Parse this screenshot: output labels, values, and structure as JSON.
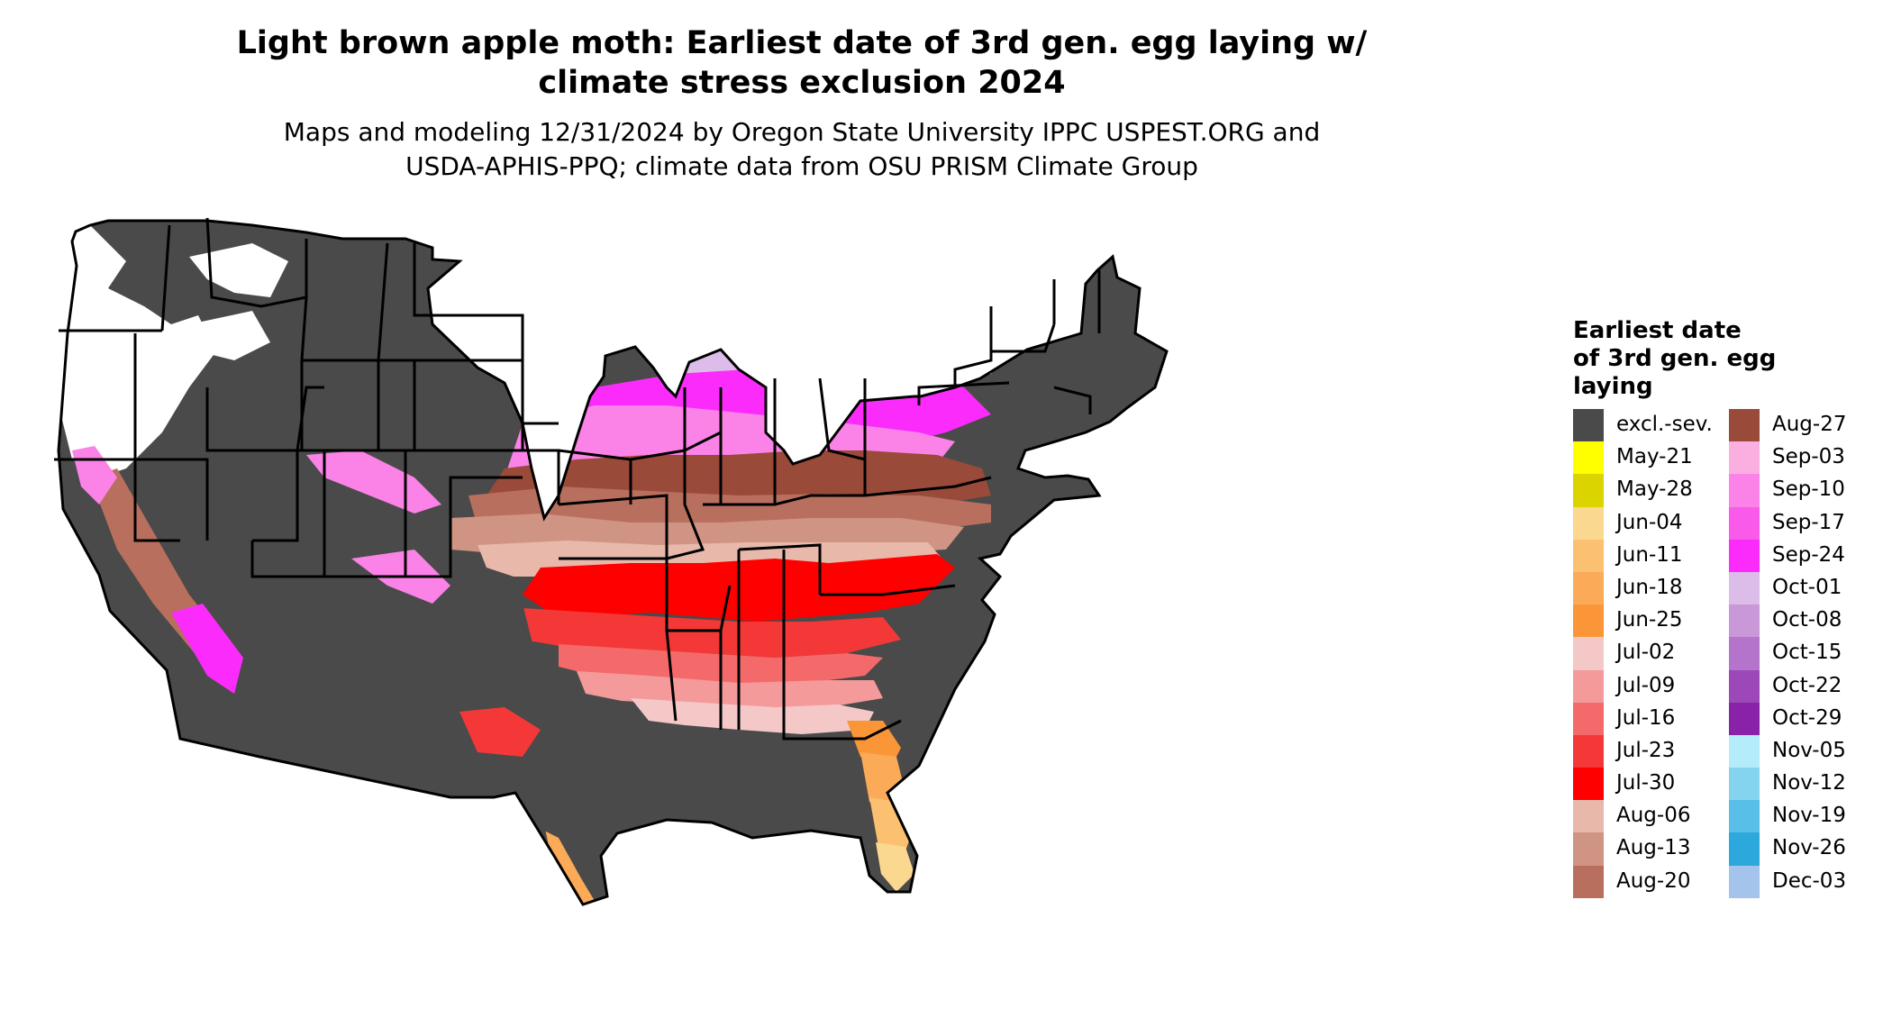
{
  "title_line1": "Light brown apple moth: Earliest date of 3rd gen. egg laying w/",
  "title_line2": "climate stress exclusion 2024",
  "subtitle_line1": "Maps and modeling 12/31/2024 by Oregon State University IPPC USPEST.ORG and",
  "subtitle_line2": "USDA-APHIS-PPQ; climate data from OSU PRISM Climate Group",
  "legend": {
    "title_line1": "Earliest date",
    "title_line2": "of 3rd gen. egg",
    "title_line3": "laying",
    "column1": [
      {
        "label": "excl.-sev.",
        "color": "#4a4a4a"
      },
      {
        "label": "May-21",
        "color": "#ffff00"
      },
      {
        "label": "May-28",
        "color": "#dcd400"
      },
      {
        "label": "Jun-04",
        "color": "#fbd890"
      },
      {
        "label": "Jun-11",
        "color": "#fbc070"
      },
      {
        "label": "Jun-18",
        "color": "#fbaa58"
      },
      {
        "label": "Jun-25",
        "color": "#fa9638"
      },
      {
        "label": "Jul-02",
        "color": "#f5c8c8"
      },
      {
        "label": "Jul-09",
        "color": "#f49a9a"
      },
      {
        "label": "Jul-16",
        "color": "#f46a6a"
      },
      {
        "label": "Jul-23",
        "color": "#f43838"
      },
      {
        "label": "Jul-30",
        "color": "#ff0000"
      },
      {
        "label": "Aug-06",
        "color": "#e8b8aa"
      },
      {
        "label": "Aug-13",
        "color": "#cf9484"
      },
      {
        "label": "Aug-20",
        "color": "#b86f5e"
      }
    ],
    "column2": [
      {
        "label": "Aug-27",
        "color": "#9a4a38"
      },
      {
        "label": "Sep-03",
        "color": "#fbaee0"
      },
      {
        "label": "Sep-10",
        "color": "#fb82e6"
      },
      {
        "label": "Sep-17",
        "color": "#fa5aea"
      },
      {
        "label": "Sep-24",
        "color": "#fb2cfb"
      },
      {
        "label": "Oct-01",
        "color": "#dcbce8"
      },
      {
        "label": "Oct-08",
        "color": "#c898d8"
      },
      {
        "label": "Oct-15",
        "color": "#b474cc"
      },
      {
        "label": "Oct-22",
        "color": "#9c48b8"
      },
      {
        "label": "Oct-29",
        "color": "#8822a8"
      },
      {
        "label": "Nov-05",
        "color": "#b4ecfc"
      },
      {
        "label": "Nov-12",
        "color": "#84d4f0"
      },
      {
        "label": "Nov-19",
        "color": "#58c0e8"
      },
      {
        "label": "Nov-26",
        "color": "#2ca8dc"
      },
      {
        "label": "Dec-03",
        "color": "#a4c4ec"
      }
    ]
  }
}
